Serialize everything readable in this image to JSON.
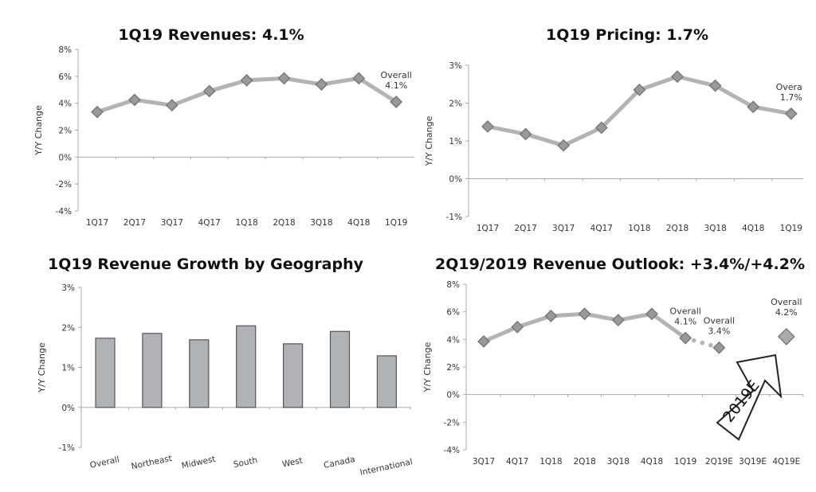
{
  "chart_data": [
    {
      "id": "revenues",
      "type": "line",
      "title": "1Q19 Revenues: 4.1%",
      "ylabel": "Y/Y Change",
      "xlabel": "",
      "ylim": [
        -4,
        8
      ],
      "yticks": [
        "8%",
        "6%",
        "4%",
        "2%",
        "0%",
        "-2%",
        "-4%"
      ],
      "ytick_values": [
        8,
        6,
        4,
        2,
        0,
        -2,
        -4
      ],
      "categories": [
        "1Q17",
        "2Q17",
        "3Q17",
        "4Q17",
        "1Q18",
        "2Q18",
        "3Q18",
        "4Q18",
        "1Q19"
      ],
      "values": [
        3.35,
        4.25,
        3.85,
        4.9,
        5.7,
        5.85,
        5.4,
        5.85,
        4.1
      ],
      "annotations": [
        {
          "category": "1Q19",
          "lines": [
            "Overall",
            "4.1%"
          ]
        }
      ],
      "grid": false,
      "line_color": "#b3b3b3",
      "marker_color": "#999999"
    },
    {
      "id": "pricing",
      "type": "line",
      "title": "1Q19 Pricing: 1.7%",
      "ylabel": "Y/Y Change",
      "xlabel": "",
      "ylim": [
        -1,
        3
      ],
      "yticks": [
        "3%",
        "2%",
        "1%",
        "0%",
        "-1%"
      ],
      "ytick_values": [
        3,
        2,
        1,
        0,
        -1
      ],
      "categories": [
        "1Q17",
        "2Q17",
        "3Q17",
        "4Q17",
        "1Q18",
        "2Q18",
        "3Q18",
        "4Q18",
        "1Q19"
      ],
      "values": [
        1.38,
        1.18,
        0.88,
        1.35,
        2.35,
        2.7,
        2.46,
        1.9,
        1.72
      ],
      "annotations": [
        {
          "category": "1Q19",
          "lines": [
            "Overa",
            "1.7%"
          ]
        }
      ],
      "grid": false,
      "line_color": "#b3b3b3",
      "marker_color": "#999999"
    },
    {
      "id": "geography",
      "type": "bar",
      "title": "1Q19 Revenue Growth by Geography",
      "ylabel": "Y/Y Change",
      "xlabel": "",
      "ylim": [
        -1,
        3
      ],
      "yticks": [
        "3%",
        "2%",
        "1%",
        "0%",
        "-1%"
      ],
      "ytick_values": [
        3,
        2,
        1,
        0,
        -1
      ],
      "categories": [
        "Overall",
        "Northeast",
        "Midwest",
        "South",
        "West",
        "Canada",
        "International"
      ],
      "values": [
        1.73,
        1.85,
        1.69,
        2.04,
        1.59,
        1.9,
        1.29
      ],
      "grid": false,
      "bar_color": "#b1b2b5"
    },
    {
      "id": "outlook",
      "type": "line",
      "title": "2Q19/2019 Revenue Outlook: +3.4%/+4.2%",
      "ylabel": "Y/Y Change",
      "xlabel": "",
      "ylim": [
        -4,
        8
      ],
      "yticks": [
        "8%",
        "6%",
        "4%",
        "2%",
        "0%",
        "-2%",
        "-4%"
      ],
      "ytick_values": [
        8,
        6,
        4,
        2,
        0,
        -2,
        -4
      ],
      "categories": [
        "3Q17",
        "4Q17",
        "1Q18",
        "2Q18",
        "3Q18",
        "4Q18",
        "1Q19",
        "2Q19E",
        "3Q19E",
        "4Q19E"
      ],
      "values": [
        3.85,
        4.9,
        5.7,
        5.85,
        5.4,
        5.85,
        4.1,
        null,
        null,
        null
      ],
      "estimates": [
        {
          "category": "2Q19E",
          "value": 3.4,
          "style": "dotted"
        },
        {
          "category": "4Q19E",
          "value": 4.2,
          "style": "large-marker"
        }
      ],
      "annotations": [
        {
          "category": "1Q19",
          "lines": [
            "Overall",
            "4.1%"
          ]
        },
        {
          "category": "2Q19E",
          "lines": [
            "Overall",
            "3.4%"
          ]
        },
        {
          "category": "4Q19E",
          "lines": [
            "Overall",
            "4.2%"
          ]
        }
      ],
      "arrow_label": "2019E",
      "grid": false,
      "line_color": "#b3b3b3",
      "marker_color": "#999999"
    }
  ]
}
